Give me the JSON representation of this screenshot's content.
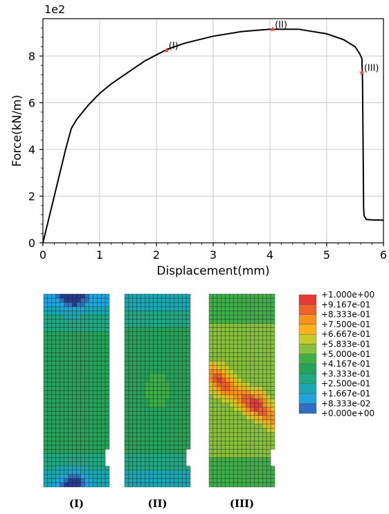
{
  "chart_data": [
    {
      "type": "line",
      "xlabel": "Displacement(mm)",
      "ylabel": "Force(kN/m)",
      "y_offset_text": "1e2",
      "xlim": [
        0,
        6
      ],
      "ylim": [
        0,
        9.6
      ],
      "xticks": [
        0,
        1,
        2,
        3,
        4,
        5,
        6
      ],
      "yticks": [
        0,
        2,
        4,
        6,
        8
      ],
      "grid": true,
      "line_color": "#000000",
      "series": [
        {
          "x": [
            0,
            0.1,
            0.2,
            0.3,
            0.4,
            0.5,
            0.6,
            0.8,
            1.0,
            1.2,
            1.5,
            1.8,
            2.0,
            2.2,
            2.5,
            3.0,
            3.5,
            4.0,
            4.5,
            5.0,
            5.3,
            5.5,
            5.58,
            5.62,
            5.63,
            5.64,
            5.65,
            5.66,
            5.7,
            5.8,
            6.0
          ],
          "y": [
            0,
            1.0,
            2.0,
            3.0,
            4.0,
            4.9,
            5.3,
            5.9,
            6.4,
            6.8,
            7.3,
            7.8,
            8.05,
            8.3,
            8.55,
            8.85,
            9.05,
            9.15,
            9.15,
            8.95,
            8.7,
            8.4,
            8.1,
            7.9,
            7.0,
            4.5,
            1.5,
            1.15,
            1.0,
            0.98,
            0.97
          ]
        }
      ],
      "annotations": [
        {
          "label": "(I)",
          "x": 2.18,
          "y": 8.25
        },
        {
          "label": "(II)",
          "x": 4.05,
          "y": 9.15
        },
        {
          "label": "(III)",
          "x": 5.62,
          "y": 7.3
        }
      ],
      "marker_color": "#e8484f"
    },
    {
      "type": "heatmap",
      "panels": [
        {
          "label": "(I)",
          "hot_spot": "none",
          "base_level": 0.42,
          "top_hot": "deep-blue",
          "bottom_hot": "deep-blue"
        },
        {
          "label": "(II)",
          "hot_spot": "weak-center",
          "base_level": 0.42,
          "top_hot": "light-blue",
          "bottom_hot": "light-blue"
        },
        {
          "label": "(III)",
          "hot_spot": "diagonal-band",
          "base_level": 0.58,
          "top_hot": "green",
          "bottom_hot": "green"
        }
      ],
      "legend_values": [
        "+1.000e+00",
        "+9.167e-01",
        "+8.333e-01",
        "+7.500e-01",
        "+6.667e-01",
        "+5.833e-01",
        "+5.000e-01",
        "+4.167e-01",
        "+3.333e-01",
        "+2.500e-01",
        "+1.667e-01",
        "+8.333e-02",
        "+0.000e+00"
      ],
      "legend_colors": [
        "#e53935",
        "#f0612a",
        "#f6911e",
        "#f9b21c",
        "#c8c92a",
        "#86c03c",
        "#3fae49",
        "#26a358",
        "#21a781",
        "#1ba6b3",
        "#1fa4dd",
        "#2d6dc2",
        "#253b93"
      ]
    }
  ]
}
